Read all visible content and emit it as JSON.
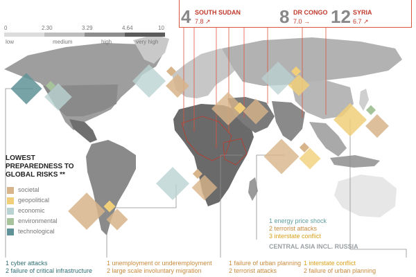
{
  "scale": {
    "ticks": [
      "0",
      "2.30",
      "3.29",
      "4.64",
      "10"
    ],
    "labels": [
      "low",
      "medium",
      "high",
      "very high"
    ],
    "colors": [
      "#dcdcdc",
      "#bdbdbd",
      "#8e8e8e",
      "#5b5b5b"
    ]
  },
  "top_fragile": [
    {
      "rank": "4",
      "country": "SOUTH SUDAN",
      "value": "7.8",
      "trend": "↗"
    },
    {
      "rank": "8",
      "country": "DR CONGO",
      "value": "7.0",
      "trend": "→"
    },
    {
      "rank": "12",
      "country": "SYRIA",
      "value": "6.7",
      "trend": "↗"
    }
  ],
  "preparedness": {
    "title_line1": "LOWEST",
    "title_line2": "PREPAREDNESS TO",
    "title_line3": "GLOBAL RISKS **",
    "categories": [
      {
        "label": "societal",
        "color": "#d8b48a"
      },
      {
        "label": "geopolitical",
        "color": "#f1cf7a"
      },
      {
        "label": "economic",
        "color": "#b9d3d2"
      },
      {
        "label": "environmental",
        "color": "#a7c39b"
      },
      {
        "label": "technological",
        "color": "#5f9397"
      }
    ]
  },
  "regions": {
    "north_america": [
      "1 cyber attacks",
      "2 failure of critical infrastructure"
    ],
    "latin_america": [
      "1 unemployment or underemployment",
      "2 large scale involuntary migration"
    ],
    "central_asia": {
      "title": "CENTRAL ASIA INCL. RUSSIA",
      "risks": [
        "1 energy price shock",
        "2 terrorist attacks",
        "3 interstate conflict"
      ]
    },
    "middle_east": [
      "1 failure of urban planning",
      "2 terrorist attacks"
    ],
    "south_asia": [
      "1 interstate conflict",
      "2 failure of urban planning"
    ]
  }
}
